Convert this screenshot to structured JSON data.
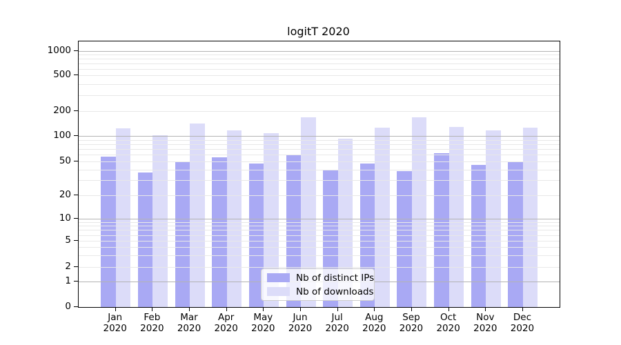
{
  "title": "logitT 2020",
  "chart_data": {
    "type": "bar",
    "title": "logitT 2020",
    "categories": [
      "Jan 2020",
      "Feb 2020",
      "Mar 2020",
      "Apr 2020",
      "May 2020",
      "Jun 2020",
      "Jul 2020",
      "Aug 2020",
      "Sep 2020",
      "Oct 2020",
      "Nov 2020",
      "Dec 2020"
    ],
    "series": [
      {
        "name": "Nb of distinct IPs",
        "color": "#a9a9f4",
        "values": [
          57,
          37,
          50,
          55,
          47,
          59,
          40,
          47,
          38,
          62,
          45,
          50
        ]
      },
      {
        "name": "Nb of downloads",
        "color": "#dcdcf9",
        "values": [
          123,
          102,
          140,
          116,
          107,
          168,
          93,
          125,
          168,
          128,
          117,
          126
        ]
      }
    ],
    "xlabel": "",
    "ylabel": "",
    "yscale": "symlog",
    "yticks": [
      0,
      1,
      2,
      5,
      10,
      20,
      50,
      100,
      200,
      500,
      1000
    ],
    "ylim": [
      0,
      1300
    ],
    "grid": "on",
    "legend_position": "lower center"
  },
  "colors": {
    "bar_dark": "#a9a9f4",
    "bar_light": "#dcdcf9",
    "major_grid": "#b3b3b3",
    "minor_grid": "#e8e8e8",
    "axis": "#000000",
    "legend_border": "#cccccc"
  }
}
